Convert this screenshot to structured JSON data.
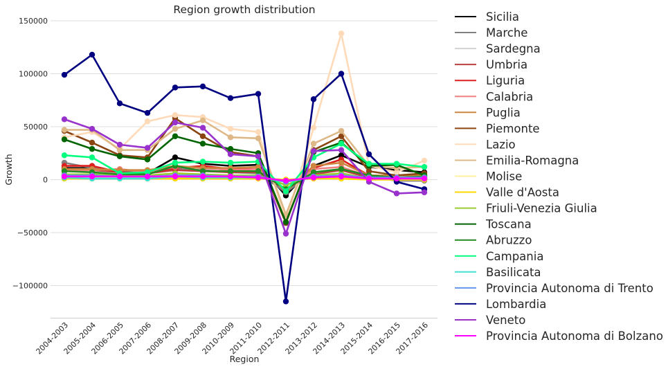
{
  "chart_data": {
    "type": "line",
    "title": "Region growth distribution",
    "xlabel": "Region",
    "ylabel": "Growth",
    "ylim": [
      -130000,
      150000
    ],
    "yticks": [
      150000,
      100000,
      50000,
      0,
      -50000,
      -100000
    ],
    "ytick_labels": [
      "150000",
      "100000",
      "50000",
      "0",
      "−50000",
      "−100000"
    ],
    "grid": "horizontal",
    "legend_position": "outside-right",
    "categories": [
      "2004-2003",
      "2005-2004",
      "2006-2005",
      "2007-2006",
      "2008-2007",
      "2009-2008",
      "2010-2009",
      "2011-2010",
      "2012-2011",
      "2013-2012",
      "2014-2013",
      "2015-2014",
      "2016-2015",
      "2017-2016"
    ],
    "series": [
      {
        "name": "Sicilia",
        "color": "#000000",
        "values": [
          11000,
          11000,
          7000,
          6000,
          21000,
          15000,
          13000,
          14000,
          -15000,
          13000,
          23000,
          12000,
          9000,
          7000
        ]
      },
      {
        "name": "Marche",
        "color": "#808080",
        "values": [
          16000,
          11000,
          8000,
          7000,
          10000,
          9000,
          7000,
          6000,
          -12000,
          7000,
          10000,
          3000,
          -1000,
          -1000
        ]
      },
      {
        "name": "Sardegna",
        "color": "#d3d3d3",
        "values": [
          4000,
          5000,
          3000,
          3000,
          6000,
          4000,
          3000,
          3000,
          -5000,
          3000,
          6000,
          1000,
          1000,
          1000
        ]
      },
      {
        "name": "Umbria",
        "color": "#bc3f3f",
        "values": [
          9000,
          9000,
          7000,
          6000,
          9000,
          8000,
          7000,
          7000,
          -9000,
          5000,
          9000,
          2000,
          1000,
          1000
        ]
      },
      {
        "name": "Liguria",
        "color": "#dc1e1e",
        "values": [
          13000,
          13000,
          7000,
          6000,
          11000,
          13000,
          10000,
          10000,
          -10000,
          11000,
          19000,
          4000,
          2000,
          2000
        ]
      },
      {
        "name": "Calabria",
        "color": "#f08080",
        "values": [
          9000,
          9000,
          10000,
          7000,
          12000,
          11000,
          9000,
          10000,
          -10000,
          10000,
          12000,
          3000,
          2000,
          2000
        ]
      },
      {
        "name": "Puglia",
        "color": "#cd853f",
        "values": [
          10000,
          10000,
          9000,
          9000,
          13000,
          11000,
          11000,
          12000,
          -11000,
          13000,
          16000,
          4000,
          4000,
          4000
        ]
      },
      {
        "name": "Piemonte",
        "color": "#8b4513",
        "values": [
          46000,
          35000,
          23000,
          21000,
          58000,
          41000,
          26000,
          22000,
          -41000,
          28000,
          41000,
          8000,
          4000,
          6000
        ]
      },
      {
        "name": "Lazio",
        "color": "#ffdab9",
        "values": [
          40000,
          45000,
          29000,
          55000,
          61000,
          59000,
          48000,
          45000,
          -39000,
          49000,
          138000,
          13000,
          7000,
          18000
        ]
      },
      {
        "name": "Emilia-Romagna",
        "color": "#deb887",
        "values": [
          47000,
          47000,
          28000,
          28000,
          48000,
          56000,
          40000,
          39000,
          -33000,
          34000,
          46000,
          13000,
          11000,
          12000
        ]
      },
      {
        "name": "Molise",
        "color": "#fff0a0",
        "values": [
          1000,
          1000,
          1000,
          1000,
          1000,
          1000,
          1000,
          1000,
          0,
          1000,
          1000,
          0,
          0,
          0
        ]
      },
      {
        "name": "Valle d'Aosta",
        "color": "#ffd700",
        "values": [
          1000,
          1000,
          1000,
          1000,
          1000,
          1000,
          1000,
          1000,
          0,
          1000,
          1000,
          0,
          0,
          0
        ]
      },
      {
        "name": "Friuli-Venezia Giulia",
        "color": "#9acd32",
        "values": [
          5000,
          5000,
          4000,
          4000,
          6000,
          5000,
          4000,
          4000,
          -5000,
          4000,
          6000,
          1000,
          1000,
          1000
        ]
      },
      {
        "name": "Toscana",
        "color": "#006400",
        "values": [
          38000,
          29000,
          22000,
          19000,
          41000,
          34000,
          29000,
          25000,
          -40000,
          26000,
          35000,
          13000,
          14000,
          4000
        ]
      },
      {
        "name": "Abruzzo",
        "color": "#228b22",
        "values": [
          8000,
          7000,
          5000,
          5000,
          13000,
          8000,
          8000,
          8000,
          -9000,
          7000,
          10000,
          4000,
          2000,
          3000
        ]
      },
      {
        "name": "Campania",
        "color": "#00ff7f",
        "values": [
          23000,
          21000,
          6000,
          7000,
          16000,
          17000,
          16000,
          17000,
          -11000,
          21000,
          34000,
          15000,
          15000,
          12000
        ]
      },
      {
        "name": "Basilicata",
        "color": "#40e0d0",
        "values": [
          2000,
          1000,
          1000,
          1000,
          3000,
          2000,
          2000,
          2000,
          -2000,
          2000,
          3000,
          1000,
          1000,
          1000
        ]
      },
      {
        "name": "Provincia Autonoma di Trento",
        "color": "#6495ed",
        "values": [
          4000,
          4000,
          3000,
          3000,
          4000,
          4000,
          3000,
          3000,
          -2000,
          3000,
          4000,
          2000,
          2000,
          2000
        ]
      },
      {
        "name": "Lombardia",
        "color": "#000080",
        "values": [
          99000,
          118000,
          72000,
          63000,
          87000,
          88000,
          77000,
          81000,
          -115000,
          76000,
          100000,
          24000,
          -2000,
          -9000
        ]
      },
      {
        "name": "Veneto",
        "color": "#9932cc",
        "values": [
          57000,
          48000,
          33000,
          30000,
          54000,
          49000,
          24000,
          22000,
          -51000,
          27000,
          28000,
          -2000,
          -13000,
          -12000
        ]
      },
      {
        "name": "Provincia Autonoma di Bolzano",
        "color": "#ff00ff",
        "values": [
          3000,
          3000,
          3000,
          3000,
          3000,
          3000,
          3000,
          2000,
          -1000,
          2000,
          3000,
          1000,
          1000,
          1000
        ]
      }
    ]
  }
}
